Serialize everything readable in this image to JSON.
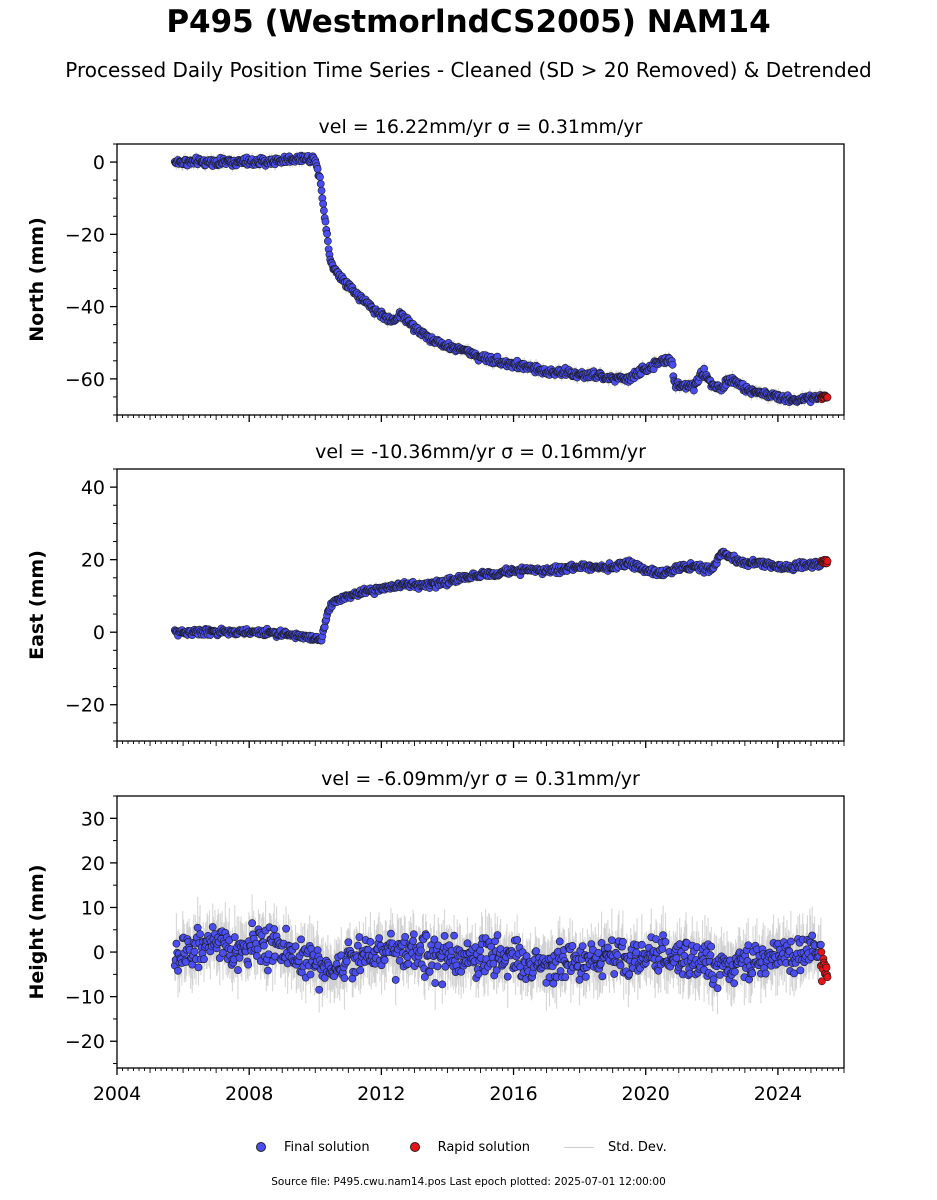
{
  "header": {
    "title": "P495 (WestmorlndCS2005) NAM14",
    "subtitle": "Processed Daily Position Time Series - Cleaned (SD > 20 Removed) & Detrended"
  },
  "legend": {
    "final": "Final solution",
    "rapid": "Rapid solution",
    "std": "Std. Dev."
  },
  "footer": {
    "text": "Source file: P495.cwu.nam14.pos  Last epoch plotted: 2025-07-01 12:00:00"
  },
  "colors": {
    "final": "#4a4ef2",
    "rapid": "#e8141a",
    "std": "#c8c8c8",
    "marker_edge": "#1a1a1a"
  },
  "chart_data": [
    {
      "type": "scatter",
      "panel": "north",
      "title": "vel = 16.22mm/yr   σ = 0.31mm/yr",
      "ylabel": "North (mm)",
      "xlim": [
        2004,
        2026
      ],
      "ylim": [
        -70,
        5
      ],
      "yticks": [
        0,
        -20,
        -40,
        -60
      ],
      "xticks": [
        2004,
        2008,
        2012,
        2016,
        2020,
        2024
      ],
      "show_xticklabels": false,
      "sigma": 1.2,
      "noise": 1.3,
      "final_range": [
        2005.75,
        2025.3
      ],
      "rapid_range": [
        2025.3,
        2025.5
      ],
      "series": [
        {
          "name": "Final solution",
          "x": [
            2005.75,
            2006.5,
            2007.5,
            2008.5,
            2009.5,
            2010.0,
            2010.15,
            2010.22,
            2010.33,
            2010.45,
            2010.6,
            2010.9,
            2011.3,
            2011.8,
            2012.3,
            2012.6,
            2013.0,
            2013.5,
            2014.0,
            2014.5,
            2015.0,
            2015.5,
            2016.0,
            2016.5,
            2017.0,
            2017.5,
            2018.0,
            2018.5,
            2019.0,
            2019.5,
            2019.8,
            2020.1,
            2020.5,
            2020.8,
            2020.85,
            2021.2,
            2021.5,
            2021.7,
            2022.0,
            2022.3,
            2022.5,
            2022.8,
            2023.0,
            2023.5,
            2024.0,
            2024.5,
            2025.0,
            2025.3
          ],
          "y": [
            0,
            0,
            0,
            0,
            1,
            1,
            -5,
            -10,
            -18,
            -27,
            -30,
            -33,
            -37,
            -41,
            -44,
            -42,
            -46,
            -49,
            -51,
            -52,
            -54,
            -55,
            -56,
            -57,
            -58,
            -58,
            -59,
            -59,
            -60,
            -60,
            -58,
            -57,
            -55,
            -55,
            -61,
            -62,
            -62,
            -58,
            -61,
            -63,
            -60,
            -61,
            -63,
            -64,
            -65,
            -66,
            -65,
            -65
          ]
        },
        {
          "name": "Rapid solution",
          "x": [
            2025.3,
            2025.5
          ],
          "y": [
            -65,
            -65
          ]
        }
      ]
    },
    {
      "type": "scatter",
      "panel": "east",
      "title": "vel = -10.36mm/yr   σ = 0.16mm/yr",
      "ylabel": "East (mm)",
      "xlim": [
        2004,
        2026
      ],
      "ylim": [
        -30,
        45
      ],
      "yticks": [
        40,
        20,
        0,
        -20
      ],
      "xticks": [
        2004,
        2008,
        2012,
        2016,
        2020,
        2024
      ],
      "show_xticklabels": false,
      "sigma": 0.9,
      "noise": 1.1,
      "final_range": [
        2005.75,
        2025.3
      ],
      "rapid_range": [
        2025.3,
        2025.5
      ],
      "series": [
        {
          "name": "Final solution",
          "x": [
            2005.75,
            2006.5,
            2007.5,
            2008.5,
            2009.5,
            2010.2,
            2010.3,
            2010.5,
            2011.0,
            2011.5,
            2012.0,
            2012.5,
            2013.0,
            2013.5,
            2014.0,
            2014.5,
            2015.0,
            2015.5,
            2016.0,
            2017.0,
            2018.0,
            2019.0,
            2019.5,
            2020.0,
            2020.5,
            2021.0,
            2021.5,
            2022.0,
            2022.3,
            2022.5,
            2023.0,
            2023.5,
            2024.0,
            2024.5,
            2025.0,
            2025.3
          ],
          "y": [
            0,
            0,
            0,
            0,
            -1,
            -2,
            3,
            8,
            10,
            11,
            12,
            13,
            13,
            13,
            14,
            15,
            16,
            16,
            17,
            17,
            18,
            18,
            19,
            17,
            16,
            18,
            18,
            17,
            22,
            21,
            19,
            19,
            18,
            18,
            19,
            19
          ]
        },
        {
          "name": "Rapid solution",
          "x": [
            2025.3,
            2025.5
          ],
          "y": [
            19.5,
            19.5
          ]
        }
      ]
    },
    {
      "type": "scatter",
      "panel": "height",
      "title": "vel = -6.09mm/yr   σ = 0.31mm/yr",
      "ylabel": "Height (mm)",
      "xlim": [
        2004,
        2026
      ],
      "ylim": [
        -26,
        35
      ],
      "yticks": [
        30,
        20,
        10,
        0,
        -10,
        -20
      ],
      "xticks": [
        2004,
        2008,
        2012,
        2016,
        2020,
        2024
      ],
      "show_xticklabels": true,
      "sigma": 4.5,
      "noise": 5.5,
      "final_range": [
        2005.75,
        2025.3
      ],
      "rapid_range": [
        2025.3,
        2025.5
      ],
      "series": [
        {
          "name": "Final solution",
          "x": [
            2005.75,
            2006.5,
            2007.5,
            2008.5,
            2009.5,
            2010.5,
            2011.5,
            2012.5,
            2013.5,
            2014.5,
            2015.5,
            2016.5,
            2017.5,
            2018.5,
            2019.5,
            2020.5,
            2021.5,
            2022.5,
            2023.5,
            2024.5,
            2025.3
          ],
          "y": [
            -2,
            2,
            0,
            2,
            -1,
            -4,
            0,
            1,
            -1,
            -2,
            0,
            -3,
            -2,
            -2,
            -2,
            -1,
            -2,
            -3,
            -2,
            0,
            -1
          ]
        },
        {
          "name": "Rapid solution",
          "x": [
            2025.3,
            2025.5
          ],
          "y": [
            -3,
            -3
          ]
        }
      ]
    }
  ]
}
